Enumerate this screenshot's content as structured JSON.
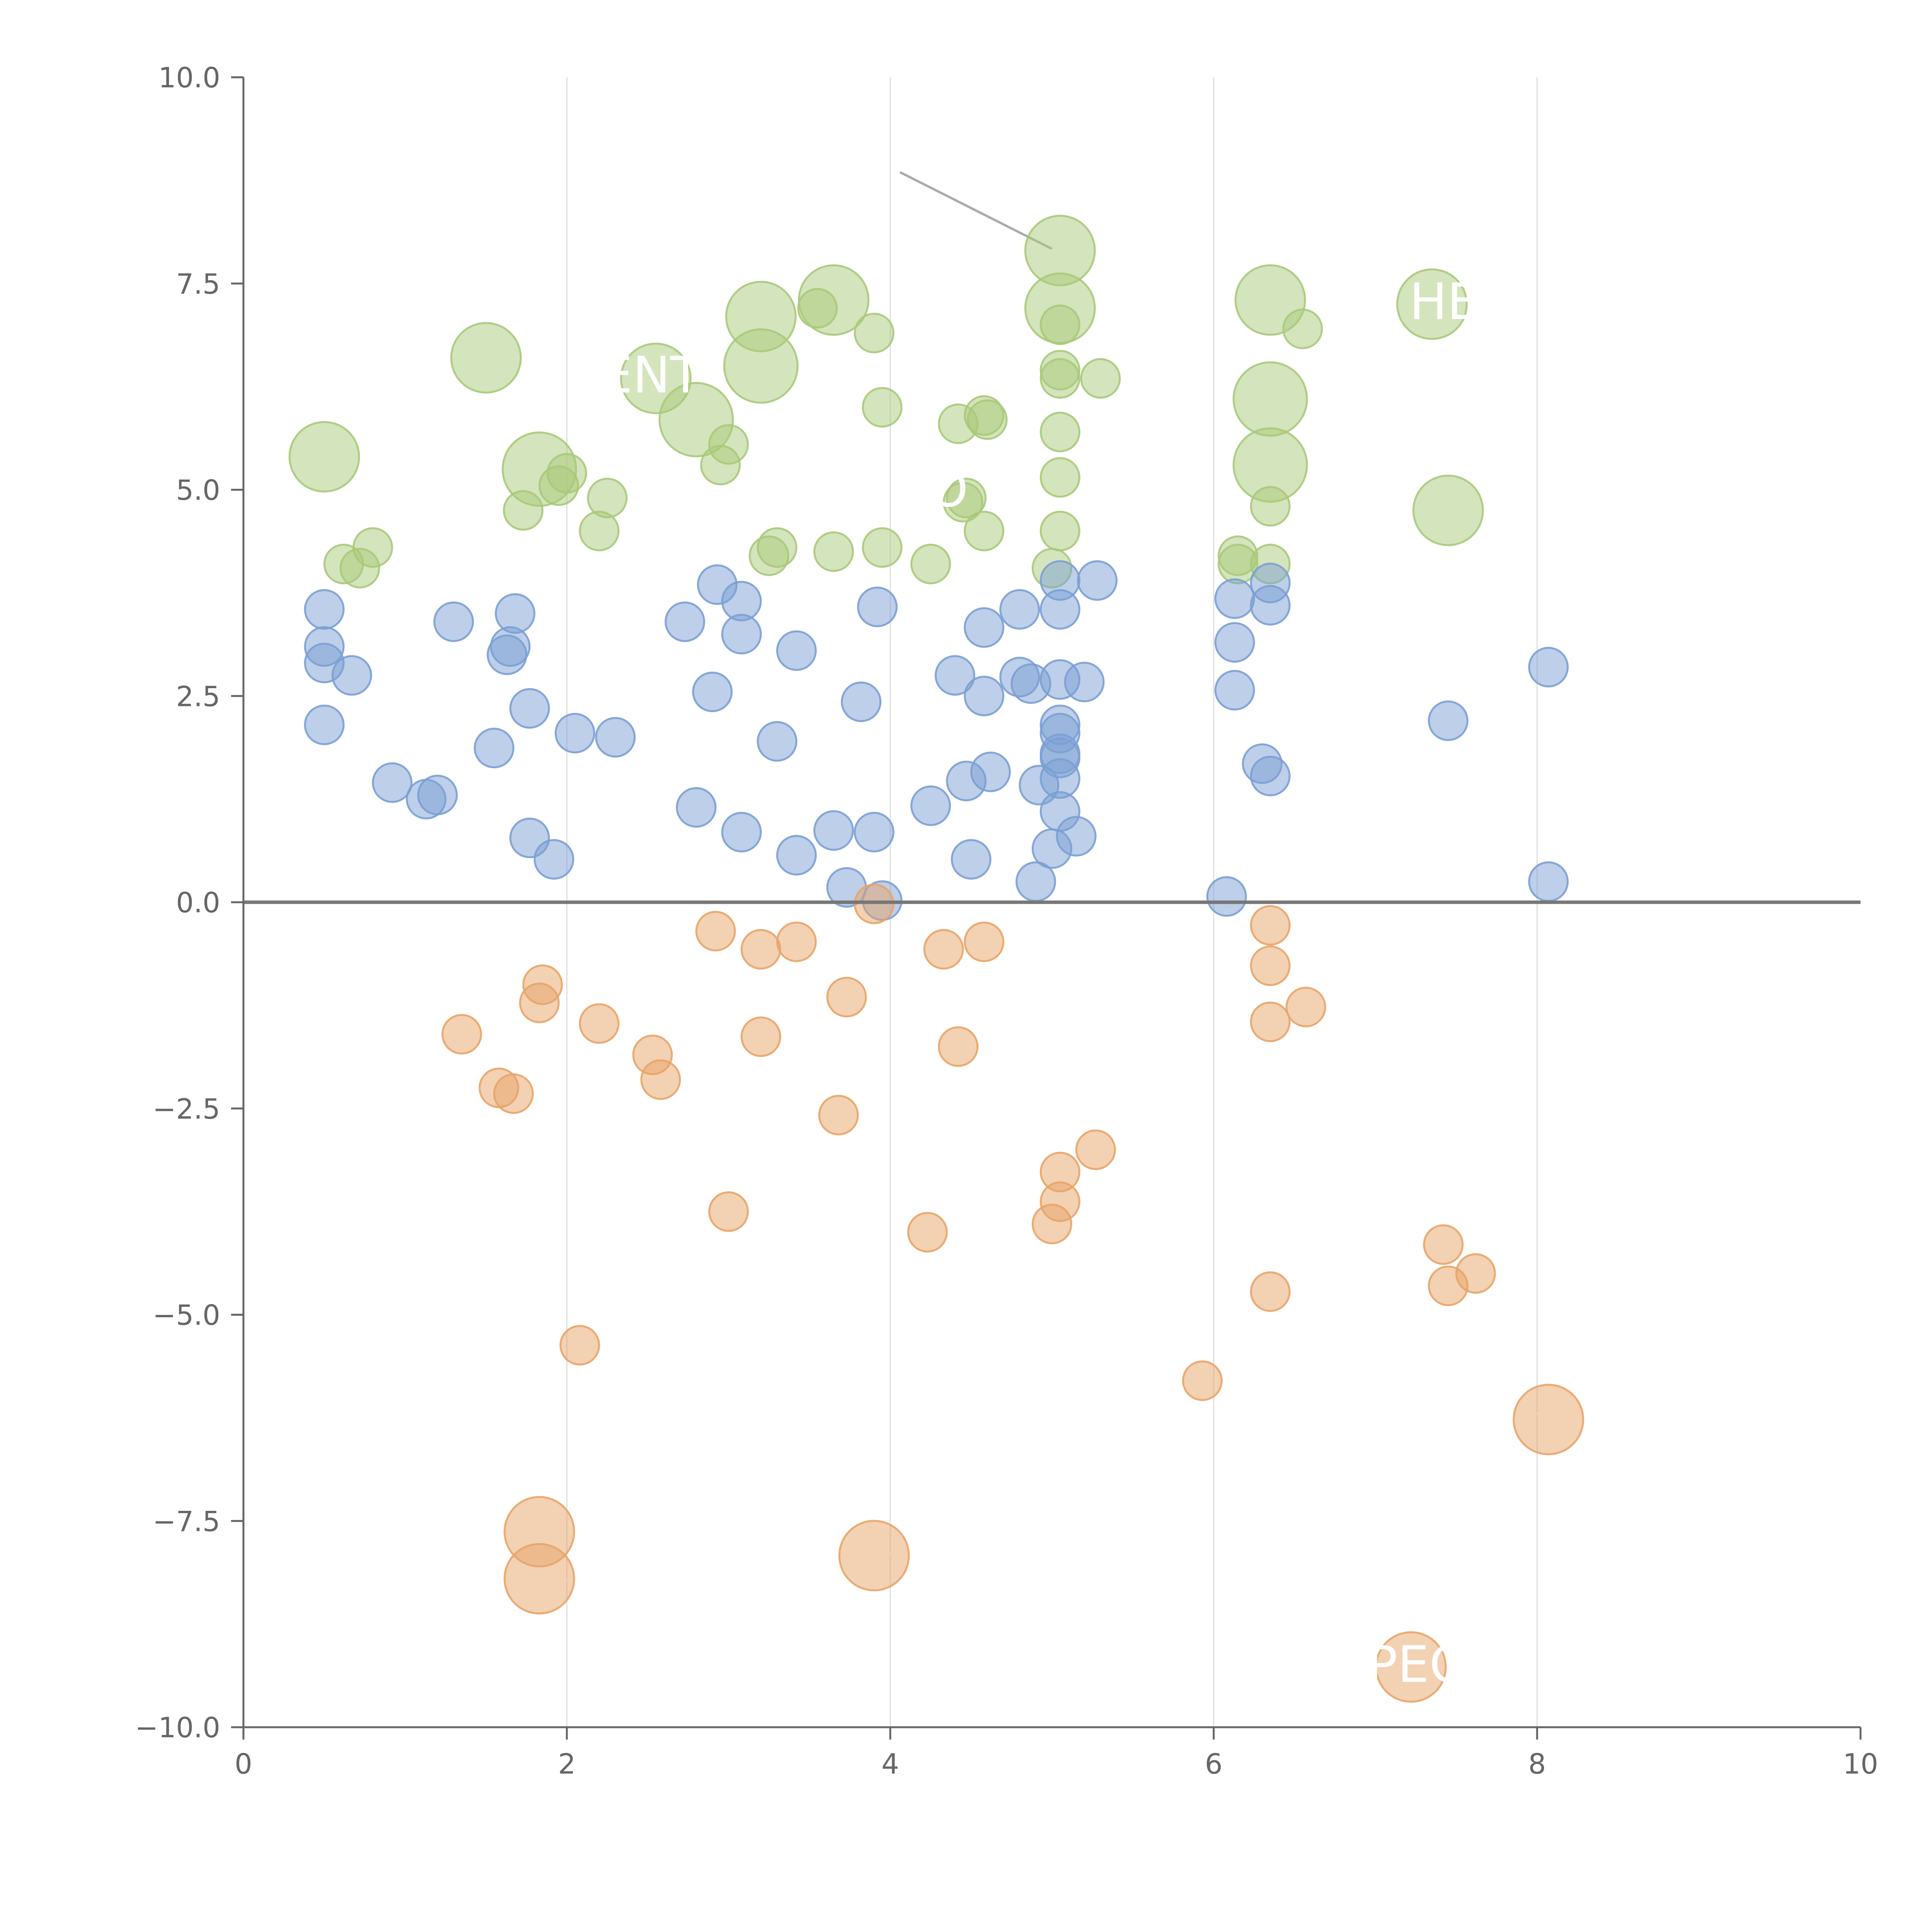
{
  "chart_data": {
    "type": "scatter",
    "title": "",
    "xlabel": "",
    "ylabel": "",
    "xlim": [
      0,
      10
    ],
    "ylim": [
      -10,
      10
    ],
    "grid": "vertical",
    "x_ticks": [
      0,
      2,
      4,
      6,
      8,
      10
    ],
    "x_tick_labels": [
      "0",
      "2",
      "4",
      "6",
      "8",
      "10"
    ],
    "y_ticks": [
      10,
      7.5,
      5,
      2.5,
      0,
      -2.5,
      -5,
      -7.5,
      -10
    ],
    "y_tick_labels": [
      "10.0",
      "7.5",
      "5.0",
      "2.5",
      "0.0",
      "−2.5",
      "−5.0",
      "−7.5",
      "−10.0"
    ],
    "zero_line": 0,
    "colors": {
      "green": "#a9c97a",
      "blue": "#7b9fd4",
      "orange": "#e8a468",
      "axis": "#666666",
      "grid": "#dddddd",
      "zero_line": "#777777",
      "leader": "#aaaaaa"
    },
    "series": [
      {
        "name": "green",
        "color": "#a9c97a",
        "points": [
          [
            0.5,
            5.4,
            1.8
          ],
          [
            1.5,
            6.6,
            1.8
          ],
          [
            1.83,
            5.25,
            1.9
          ],
          [
            2.55,
            6.35,
            1.8
          ],
          [
            2.8,
            5.85,
            1.9
          ],
          [
            3.2,
            7.1,
            1.8
          ],
          [
            3.2,
            6.5,
            1.9
          ],
          [
            3.65,
            7.3,
            1.8
          ],
          [
            5.05,
            7.9,
            1.8
          ],
          [
            5.05,
            7.2,
            1.8
          ],
          [
            6.35,
            7.3,
            1.8
          ],
          [
            6.35,
            6.1,
            1.9
          ],
          [
            6.35,
            5.3,
            1.9
          ],
          [
            7.35,
            7.25,
            1.8
          ],
          [
            7.45,
            4.75,
            1.8
          ],
          [
            0.62,
            4.1,
            1
          ],
          [
            0.72,
            4.05,
            1
          ],
          [
            0.8,
            4.3,
            1
          ],
          [
            1.73,
            4.75,
            1
          ],
          [
            1.95,
            5.05,
            1
          ],
          [
            2.0,
            5.2,
            1
          ],
          [
            2.2,
            4.5,
            1
          ],
          [
            2.25,
            4.9,
            1
          ],
          [
            2.95,
            5.3,
            1
          ],
          [
            3.0,
            5.55,
            1
          ],
          [
            3.25,
            4.2,
            1
          ],
          [
            3.3,
            4.3,
            1
          ],
          [
            3.55,
            7.2,
            1
          ],
          [
            3.65,
            4.25,
            1
          ],
          [
            3.9,
            6.9,
            1
          ],
          [
            3.95,
            6.0,
            1
          ],
          [
            3.95,
            4.3,
            1
          ],
          [
            4.25,
            4.1,
            1
          ],
          [
            4.42,
            5.8,
            1
          ],
          [
            4.45,
            4.85,
            1
          ],
          [
            4.47,
            4.9,
            1
          ],
          [
            4.58,
            5.9,
            1
          ],
          [
            4.6,
            5.85,
            1
          ],
          [
            4.58,
            4.5,
            1
          ],
          [
            5.0,
            4.05,
            1
          ],
          [
            5.05,
            7.0,
            1
          ],
          [
            5.05,
            6.45,
            1
          ],
          [
            5.05,
            6.35,
            1
          ],
          [
            5.05,
            5.7,
            1
          ],
          [
            5.05,
            5.15,
            1
          ],
          [
            5.05,
            4.5,
            1
          ],
          [
            5.3,
            6.35,
            1
          ],
          [
            6.15,
            4.2,
            1
          ],
          [
            6.15,
            4.1,
            1
          ],
          [
            6.35,
            4.1,
            1
          ],
          [
            6.35,
            4.8,
            1
          ],
          [
            6.55,
            6.95,
            1
          ]
        ]
      },
      {
        "name": "blue",
        "color": "#7b9fd4",
        "points": [
          [
            0.5,
            3.55,
            1
          ],
          [
            0.5,
            3.1,
            1
          ],
          [
            0.5,
            2.9,
            1
          ],
          [
            0.5,
            2.15,
            1
          ],
          [
            0.67,
            2.75,
            1
          ],
          [
            0.92,
            1.45,
            1
          ],
          [
            1.13,
            1.25,
            1
          ],
          [
            1.2,
            1.3,
            1
          ],
          [
            1.3,
            3.4,
            1
          ],
          [
            1.55,
            1.87,
            1
          ],
          [
            1.63,
            3.0,
            1
          ],
          [
            1.65,
            3.1,
            1
          ],
          [
            1.68,
            3.5,
            1
          ],
          [
            1.77,
            2.35,
            1
          ],
          [
            1.77,
            0.78,
            1
          ],
          [
            1.92,
            0.52,
            1
          ],
          [
            2.05,
            2.05,
            1
          ],
          [
            2.3,
            2.0,
            1
          ],
          [
            2.73,
            3.4,
            1
          ],
          [
            2.8,
            1.15,
            1
          ],
          [
            2.9,
            2.55,
            1
          ],
          [
            2.93,
            3.85,
            1
          ],
          [
            3.08,
            3.25,
            1
          ],
          [
            3.08,
            3.65,
            1
          ],
          [
            3.08,
            0.85,
            1
          ],
          [
            3.3,
            1.95,
            1
          ],
          [
            3.42,
            0.57,
            1
          ],
          [
            3.42,
            3.05,
            1
          ],
          [
            3.65,
            0.87,
            1
          ],
          [
            3.73,
            0.18,
            1
          ],
          [
            3.82,
            2.43,
            1
          ],
          [
            3.9,
            0.85,
            1
          ],
          [
            3.92,
            3.58,
            1
          ],
          [
            3.95,
            0.02,
            1
          ],
          [
            4.25,
            1.17,
            1
          ],
          [
            4.4,
            2.75,
            1
          ],
          [
            4.47,
            1.47,
            1
          ],
          [
            4.5,
            0.52,
            1
          ],
          [
            4.58,
            2.5,
            1
          ],
          [
            4.58,
            3.33,
            1
          ],
          [
            4.62,
            1.58,
            1
          ],
          [
            4.8,
            3.55,
            1
          ],
          [
            4.8,
            2.73,
            1
          ],
          [
            4.87,
            2.65,
            1
          ],
          [
            4.9,
            0.25,
            1
          ],
          [
            4.92,
            1.42,
            1
          ],
          [
            5.0,
            0.65,
            1
          ],
          [
            5.05,
            3.9,
            1
          ],
          [
            5.05,
            3.55,
            1
          ],
          [
            5.05,
            2.7,
            1
          ],
          [
            5.05,
            2.15,
            1
          ],
          [
            5.05,
            2.05,
            1
          ],
          [
            5.05,
            1.8,
            1
          ],
          [
            5.05,
            1.75,
            1
          ],
          [
            5.05,
            1.5,
            1
          ],
          [
            5.05,
            1.1,
            1
          ],
          [
            5.15,
            0.8,
            1
          ],
          [
            5.2,
            2.67,
            1
          ],
          [
            5.28,
            3.9,
            1
          ],
          [
            6.08,
            0.07,
            1
          ],
          [
            6.13,
            2.57,
            1
          ],
          [
            6.13,
            3.15,
            1
          ],
          [
            6.13,
            3.68,
            1
          ],
          [
            6.3,
            1.68,
            1
          ],
          [
            6.35,
            1.53,
            1
          ],
          [
            6.35,
            3.6,
            1
          ],
          [
            6.35,
            3.87,
            1
          ],
          [
            7.45,
            2.2,
            1
          ],
          [
            8.07,
            2.85,
            1
          ],
          [
            8.07,
            0.25,
            1
          ]
        ]
      },
      {
        "name": "orange",
        "color": "#e8a468",
        "points": [
          [
            1.35,
            -1.6,
            1
          ],
          [
            1.58,
            -2.25,
            1
          ],
          [
            1.67,
            -2.32,
            1
          ],
          [
            1.83,
            -1.22,
            1
          ],
          [
            1.85,
            -1.0,
            1
          ],
          [
            2.08,
            -5.37,
            1
          ],
          [
            2.2,
            -1.47,
            1
          ],
          [
            2.53,
            -1.85,
            1
          ],
          [
            2.58,
            -2.15,
            1
          ],
          [
            2.92,
            -0.35,
            1
          ],
          [
            3.0,
            -3.75,
            1
          ],
          [
            3.2,
            -1.63,
            1
          ],
          [
            3.2,
            -0.57,
            1
          ],
          [
            3.42,
            -0.48,
            1
          ],
          [
            3.68,
            -2.58,
            1
          ],
          [
            3.73,
            -1.15,
            1
          ],
          [
            3.9,
            -0.02,
            1
          ],
          [
            4.23,
            -4.0,
            1
          ],
          [
            4.33,
            -0.57,
            1
          ],
          [
            4.42,
            -1.75,
            1
          ],
          [
            4.58,
            -0.48,
            1
          ],
          [
            5.0,
            -3.9,
            1
          ],
          [
            5.05,
            -3.27,
            1
          ],
          [
            5.05,
            -3.63,
            1
          ],
          [
            5.27,
            -3.0,
            1
          ],
          [
            5.93,
            -5.8,
            1
          ],
          [
            6.35,
            -0.28,
            1
          ],
          [
            6.35,
            -0.77,
            1
          ],
          [
            6.35,
            -1.45,
            1
          ],
          [
            6.35,
            -4.72,
            1
          ],
          [
            6.57,
            -1.27,
            1
          ],
          [
            7.42,
            -4.15,
            1
          ],
          [
            7.45,
            -4.65,
            1
          ],
          [
            7.62,
            -4.5,
            1
          ],
          [
            1.83,
            -7.63,
            1.8
          ],
          [
            1.83,
            -8.2,
            1.8
          ],
          [
            3.9,
            -7.92,
            1.8
          ],
          [
            8.07,
            -6.27,
            1.8
          ],
          [
            7.22,
            -9.27,
            1.8
          ]
        ]
      }
    ],
    "annotations": [
      {
        "text": "ENT",
        "x": 2.52,
        "y": 6.18
      },
      {
        "text": "HET",
        "x": 7.52,
        "y": 7.07
      },
      {
        "text": "PEC",
        "x": 7.25,
        "y": -9.45
      },
      {
        "text": "O",
        "x": 4.36,
        "y": 4.8
      }
    ]
  }
}
